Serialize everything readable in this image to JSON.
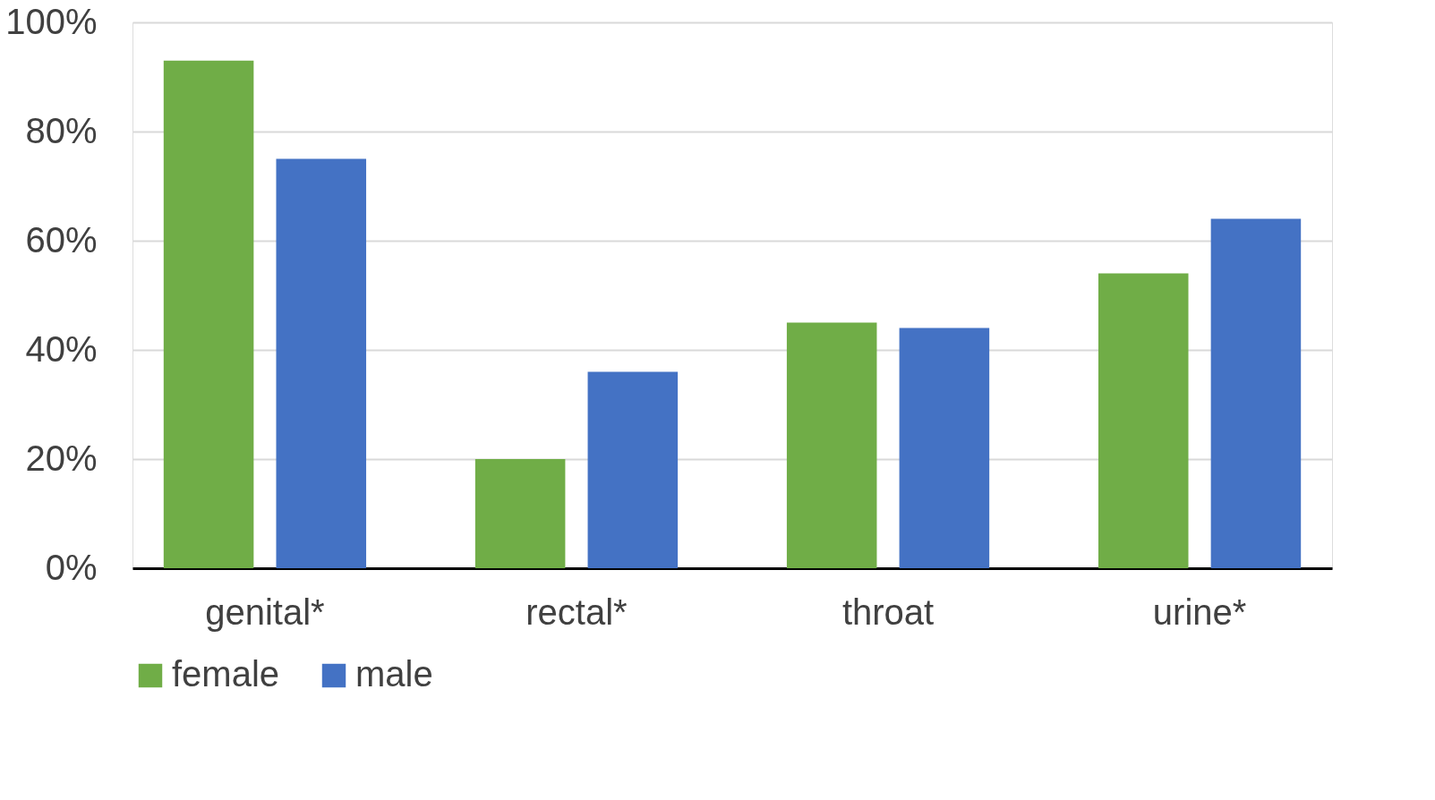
{
  "chart_data": {
    "type": "bar",
    "categories": [
      "genital*",
      "rectal*",
      "throat",
      "urine*"
    ],
    "series": [
      {
        "name": "female",
        "color": "#70ad47",
        "values": [
          93,
          20,
          45,
          54
        ]
      },
      {
        "name": "male",
        "color": "#4472c4",
        "values": [
          75,
          36,
          44,
          64
        ]
      }
    ],
    "ylim": [
      0,
      100
    ],
    "yticks": [
      {
        "value": 0,
        "label": "0%"
      },
      {
        "value": 20,
        "label": "20%"
      },
      {
        "value": 40,
        "label": "40%"
      },
      {
        "value": 60,
        "label": "60%"
      },
      {
        "value": 80,
        "label": "80%"
      },
      {
        "value": 100,
        "label": "100%"
      }
    ],
    "grid": "y",
    "legend": "bottom"
  }
}
